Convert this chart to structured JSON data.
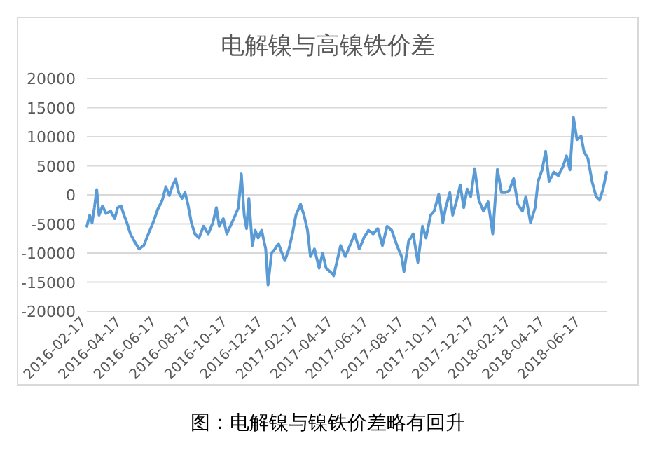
{
  "chart_data": {
    "type": "line",
    "title": "电解镍与高镍铁价差",
    "annotations": [
      "图：电解镍与镍铁价差略有回升"
    ],
    "xlim": [
      "2016-02-17",
      "2018-07-31"
    ],
    "xticks": [
      "2016-02-17",
      "2016-04-17",
      "2016-06-17",
      "2016-08-17",
      "2016-10-17",
      "2016-12-17",
      "2017-02-17",
      "2017-04-17",
      "2017-06-17",
      "2017-08-17",
      "2017-10-17",
      "2017-12-17",
      "2018-02-17",
      "2018-04-17",
      "2018-06-17"
    ],
    "ylim": [
      -20000,
      20000
    ],
    "yticks": [
      -20000,
      -15000,
      -10000,
      -5000,
      0,
      5000,
      10000,
      15000,
      20000
    ],
    "grid": "y",
    "series": [
      {
        "color": "#5b9bd5",
        "x": [
          "2016-02-17",
          "2016-02-22",
          "2016-02-26",
          "2016-03-01",
          "2016-03-05",
          "2016-03-09",
          "2016-03-15",
          "2016-03-21",
          "2016-03-29",
          "2016-04-05",
          "2016-04-10",
          "2016-04-16",
          "2016-04-21",
          "2016-04-26",
          "2016-05-02",
          "2016-05-09",
          "2016-05-17",
          "2016-05-25",
          "2016-06-02",
          "2016-06-10",
          "2016-06-18",
          "2016-06-26",
          "2016-07-02",
          "2016-07-08",
          "2016-07-14",
          "2016-07-19",
          "2016-07-24",
          "2016-07-30",
          "2016-08-04",
          "2016-08-09",
          "2016-08-15",
          "2016-08-21",
          "2016-08-28",
          "2016-09-05",
          "2016-09-13",
          "2016-09-21",
          "2016-09-27",
          "2016-10-02",
          "2016-10-09",
          "2016-10-15",
          "2016-10-21",
          "2016-10-27",
          "2016-11-04",
          "2016-11-09",
          "2016-11-14",
          "2016-11-18",
          "2016-11-22",
          "2016-11-28",
          "2016-12-03",
          "2016-12-08",
          "2016-12-14",
          "2016-12-21",
          "2016-12-25",
          "2016-12-31",
          "2017-01-06",
          "2017-01-12",
          "2017-01-18",
          "2017-01-23",
          "2017-01-30",
          "2017-02-05",
          "2017-02-11",
          "2017-02-19",
          "2017-02-25",
          "2017-03-03",
          "2017-03-08",
          "2017-03-15",
          "2017-03-23",
          "2017-03-29",
          "2017-04-04",
          "2017-04-14",
          "2017-04-17",
          "2017-04-29",
          "2017-05-07",
          "2017-05-15",
          "2017-05-23",
          "2017-05-31",
          "2017-06-08",
          "2017-06-16",
          "2017-06-24",
          "2017-07-02",
          "2017-07-10",
          "2017-07-18",
          "2017-07-26",
          "2017-08-04",
          "2017-08-12",
          "2017-08-16",
          "2017-08-24",
          "2017-09-01",
          "2017-09-09",
          "2017-09-17",
          "2017-09-23",
          "2017-10-01",
          "2017-10-07",
          "2017-10-15",
          "2017-10-22",
          "2017-10-27",
          "2017-11-03",
          "2017-11-08",
          "2017-11-15",
          "2017-11-21",
          "2017-11-27",
          "2017-12-03",
          "2017-12-09",
          "2017-12-16",
          "2017-12-23",
          "2017-12-31",
          "2018-01-08",
          "2018-01-16",
          "2018-01-24",
          "2018-01-31",
          "2018-02-07",
          "2018-02-13",
          "2018-02-21",
          "2018-02-28",
          "2018-03-08",
          "2018-03-14",
          "2018-03-22",
          "2018-03-30",
          "2018-04-04",
          "2018-04-11",
          "2018-04-17",
          "2018-04-23",
          "2018-05-01",
          "2018-05-09",
          "2018-05-17",
          "2018-05-23",
          "2018-05-29",
          "2018-06-04",
          "2018-06-10",
          "2018-06-17",
          "2018-06-22",
          "2018-06-29",
          "2018-07-06",
          "2018-07-13",
          "2018-07-19",
          "2018-07-25",
          "2018-07-31"
        ],
        "values": [
          -5400,
          -3500,
          -4800,
          -2200,
          900,
          -3500,
          -1900,
          -3200,
          -2800,
          -4100,
          -2200,
          -1900,
          -3500,
          -4800,
          -6700,
          -8000,
          -9300,
          -8700,
          -6700,
          -4800,
          -2500,
          -900,
          1400,
          -100,
          1700,
          2700,
          400,
          -600,
          400,
          -1600,
          -4800,
          -6700,
          -7400,
          -5400,
          -6700,
          -4800,
          -2200,
          -5400,
          -4100,
          -6700,
          -5400,
          -4100,
          -2200,
          3600,
          -3500,
          -5800,
          -600,
          -8700,
          -6100,
          -7400,
          -6100,
          -9300,
          -15500,
          -10000,
          -9300,
          -8400,
          -10000,
          -11300,
          -9300,
          -6700,
          -3500,
          -1600,
          -3500,
          -6100,
          -10600,
          -9300,
          -12600,
          -10000,
          -12600,
          -13500,
          -13900,
          -8700,
          -10600,
          -8700,
          -6700,
          -9300,
          -7400,
          -6100,
          -6700,
          -5800,
          -8700,
          -5400,
          -6100,
          -8700,
          -10600,
          -13200,
          -8000,
          -6700,
          -11600,
          -5400,
          -7400,
          -3500,
          -2800,
          100,
          -4800,
          -2200,
          400,
          -3500,
          -900,
          1700,
          -2200,
          1000,
          -300,
          4500,
          -900,
          -2800,
          -1200,
          -6700,
          4400,
          400,
          400,
          700,
          2800,
          -1600,
          -2800,
          -300,
          -4800,
          -2200,
          2300,
          4300,
          7500,
          2300,
          3900,
          3300,
          4900,
          6700,
          4300,
          13300,
          9500,
          10100,
          7500,
          6200,
          2300,
          -300,
          -900,
          1000,
          3900
        ]
      }
    ]
  }
}
